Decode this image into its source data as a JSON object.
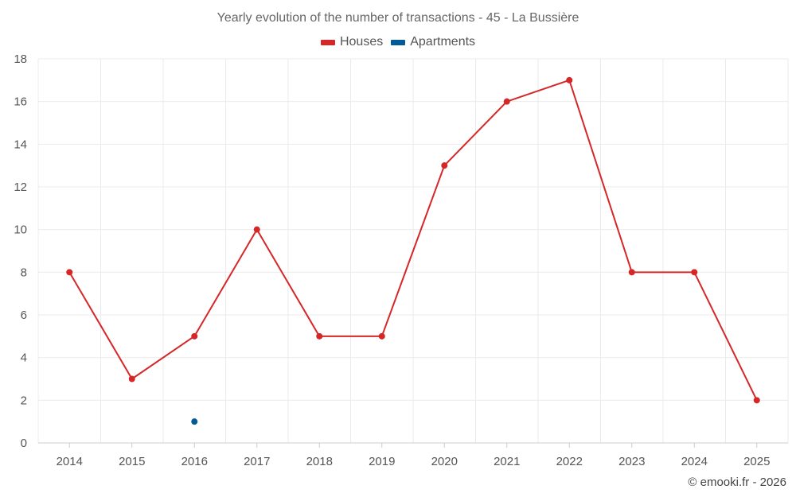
{
  "page": {
    "title": "Yearly evolution of the number of transactions - 45 - La Bussière",
    "credit": "© emooki.fr - 2026"
  },
  "legend": [
    {
      "label": "Houses",
      "color": "#d62728"
    },
    {
      "label": "Apartments",
      "color": "#005b96"
    }
  ],
  "chart_data": {
    "type": "line",
    "title": "Yearly evolution of the number of transactions - 45 - La Bussière",
    "categories": [
      "2014",
      "2015",
      "2016",
      "2017",
      "2018",
      "2019",
      "2020",
      "2021",
      "2022",
      "2023",
      "2024",
      "2025"
    ],
    "series": [
      {
        "name": "Houses",
        "color": "#d62728",
        "values": [
          8,
          3,
          5,
          10,
          5,
          5,
          13,
          16,
          17,
          8,
          8,
          2
        ]
      },
      {
        "name": "Apartments",
        "color": "#005b96",
        "values": [
          null,
          null,
          1,
          null,
          null,
          null,
          null,
          null,
          null,
          null,
          null,
          null
        ]
      }
    ],
    "yticks": [
      0,
      2,
      4,
      6,
      8,
      10,
      12,
      14,
      16,
      18
    ],
    "ylim": [
      0,
      18
    ],
    "grid": true,
    "legend_position": "top-center"
  }
}
